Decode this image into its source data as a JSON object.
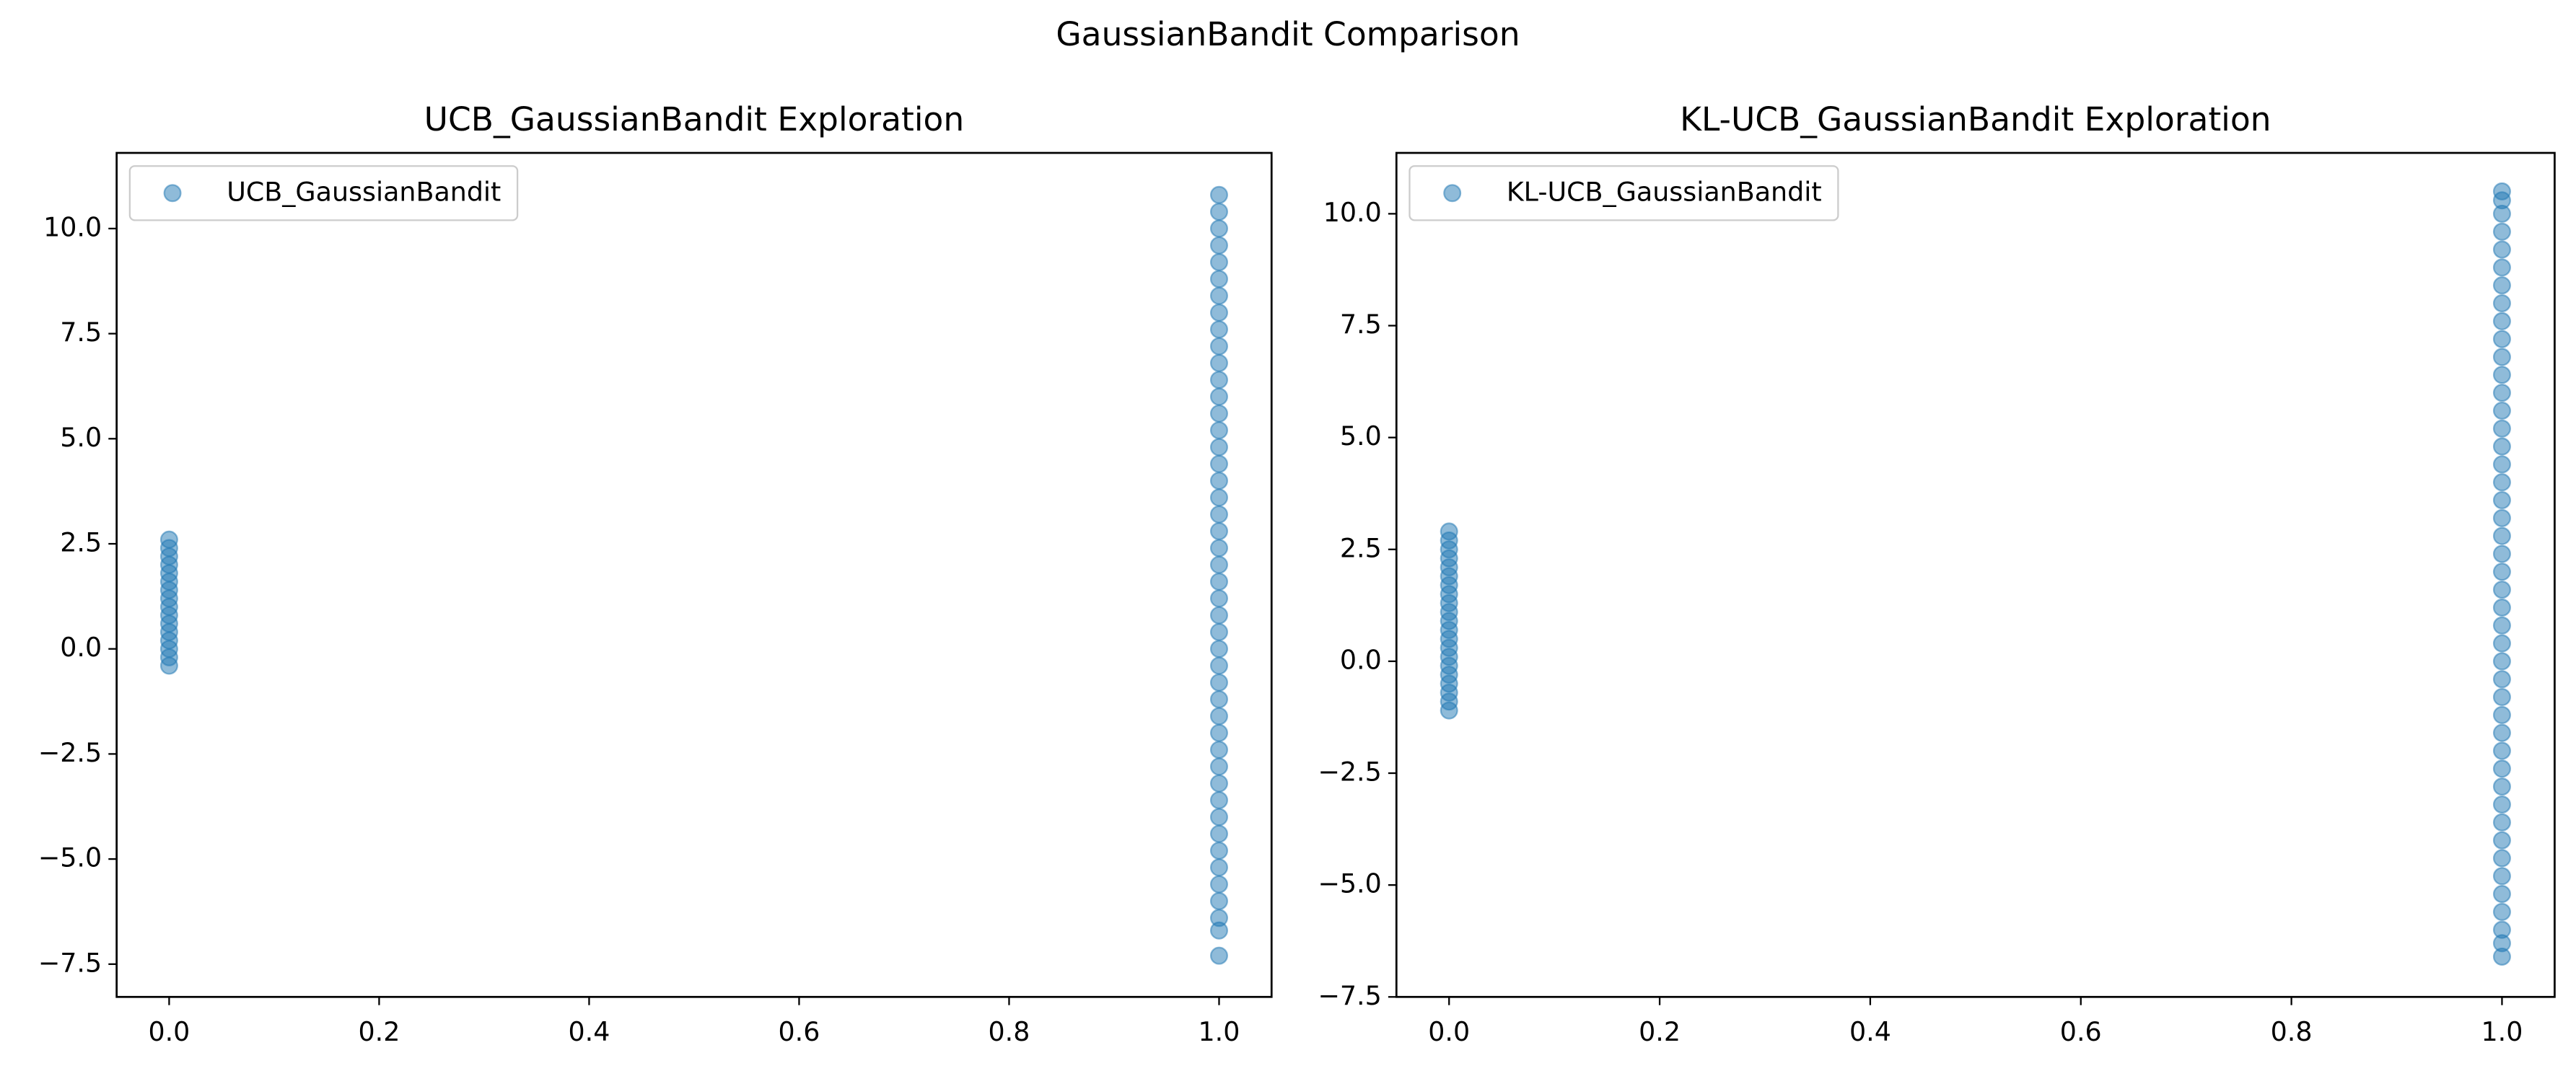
{
  "title": "GaussianBandit Comparison",
  "chart_data": [
    {
      "type": "scatter",
      "title": "UCB_GaussianBandit Exploration",
      "legend": "upper left",
      "series": [
        {
          "name": "UCB_GaussianBandit",
          "color": "#1f77b4",
          "x": [
            0,
            0,
            0,
            0,
            0,
            0,
            0,
            0,
            0,
            0,
            0,
            0,
            0,
            0,
            0,
            0,
            1,
            1,
            1,
            1,
            1,
            1,
            1,
            1,
            1,
            1,
            1,
            1,
            1,
            1,
            1,
            1,
            1,
            1,
            1,
            1,
            1,
            1,
            1,
            1,
            1,
            1,
            1,
            1,
            1,
            1,
            1,
            1,
            1,
            1,
            1,
            1,
            1,
            1,
            1,
            1,
            1,
            1,
            1,
            1,
            1,
            1
          ],
          "values": [
            -0.4,
            -0.2,
            0,
            0.2,
            0.4,
            0.6,
            0.8,
            1,
            1.2,
            1.4,
            1.6,
            1.8,
            2,
            2.2,
            2.4,
            2.6,
            -7.3,
            -6.7,
            -6.4,
            -6.0,
            -5.6,
            -5.2,
            -4.8,
            -4.4,
            -4.0,
            -3.6,
            -3.2,
            -2.8,
            -2.4,
            -2.0,
            -1.6,
            -1.2,
            -0.8,
            -0.4,
            0,
            0.4,
            0.8,
            1.2,
            1.6,
            2.0,
            2.4,
            2.8,
            3.2,
            3.6,
            4.0,
            4.4,
            4.8,
            5.2,
            5.6,
            6.0,
            6.4,
            6.8,
            7.2,
            7.6,
            8.0,
            8.4,
            8.8,
            9.2,
            9.6,
            10.0,
            10.4,
            10.8
          ]
        }
      ],
      "xlim": [
        -0.05,
        1.05
      ],
      "xticks": [
        {
          "value": 0,
          "label": "0.0"
        },
        {
          "value": 0.2,
          "label": "0.2"
        },
        {
          "value": 0.4,
          "label": "0.4"
        },
        {
          "value": 0.6,
          "label": "0.6"
        },
        {
          "value": 0.8,
          "label": "0.8"
        },
        {
          "value": 1,
          "label": "1.0"
        }
      ],
      "ylim": [
        -8.28,
        11.8
      ],
      "yticks": [
        {
          "value": -7.5,
          "label": "−7.5"
        },
        {
          "value": -5,
          "label": "−5.0"
        },
        {
          "value": -2.5,
          "label": "−2.5"
        },
        {
          "value": 0,
          "label": "0.0"
        },
        {
          "value": 2.5,
          "label": "2.5"
        },
        {
          "value": 5,
          "label": "5.0"
        },
        {
          "value": 7.5,
          "label": "7.5"
        },
        {
          "value": 10,
          "label": "10.0"
        }
      ]
    },
    {
      "type": "scatter",
      "title": "KL-UCB_GaussianBandit Exploration",
      "legend": "upper left",
      "series": [
        {
          "name": "KL-UCB_GaussianBandit",
          "color": "#1f77b4",
          "x": [
            0,
            0,
            0,
            0,
            0,
            0,
            0,
            0,
            0,
            0,
            0,
            0,
            0,
            0,
            0,
            0,
            0,
            0,
            0,
            0,
            0,
            1,
            1,
            1,
            1,
            1,
            1,
            1,
            1,
            1,
            1,
            1,
            1,
            1,
            1,
            1,
            1,
            1,
            1,
            1,
            1,
            1,
            1,
            1,
            1,
            1,
            1,
            1,
            1,
            1,
            1,
            1,
            1,
            1,
            1,
            1,
            1,
            1,
            1,
            1,
            1,
            1,
            1,
            1,
            1,
            1
          ],
          "values": [
            -1.1,
            -0.9,
            -0.7,
            -0.5,
            -0.3,
            -0.1,
            0.1,
            0.3,
            0.5,
            0.7,
            0.9,
            1.1,
            1.3,
            1.5,
            1.7,
            1.9,
            2.1,
            2.3,
            2.5,
            2.7,
            2.9,
            -6.6,
            -6.3,
            -6.0,
            -5.6,
            -5.2,
            -4.8,
            -4.4,
            -4.0,
            -3.6,
            -3.2,
            -2.8,
            -2.4,
            -2.0,
            -1.6,
            -1.2,
            -0.8,
            -0.4,
            0,
            0.4,
            0.8,
            1.2,
            1.6,
            2.0,
            2.4,
            2.8,
            3.2,
            3.6,
            4.0,
            4.4,
            4.8,
            5.2,
            5.6,
            6.0,
            6.4,
            6.8,
            7.2,
            7.6,
            8.0,
            8.4,
            8.8,
            9.2,
            9.6,
            10.0,
            10.3,
            10.5
          ]
        }
      ],
      "xlim": [
        -0.05,
        1.05
      ],
      "xticks": [
        {
          "value": 0,
          "label": "0.0"
        },
        {
          "value": 0.2,
          "label": "0.2"
        },
        {
          "value": 0.4,
          "label": "0.4"
        },
        {
          "value": 0.6,
          "label": "0.6"
        },
        {
          "value": 0.8,
          "label": "0.8"
        },
        {
          "value": 1,
          "label": "1.0"
        }
      ],
      "ylim": [
        -7.5,
        11.36
      ],
      "yticks": [
        {
          "value": -7.5,
          "label": "−7.5"
        },
        {
          "value": -5,
          "label": "−5.0"
        },
        {
          "value": -2.5,
          "label": "−2.5"
        },
        {
          "value": 0,
          "label": "0.0"
        },
        {
          "value": 2.5,
          "label": "2.5"
        },
        {
          "value": 5,
          "label": "5.0"
        },
        {
          "value": 7.5,
          "label": "7.5"
        },
        {
          "value": 10,
          "label": "10.0"
        }
      ]
    }
  ]
}
